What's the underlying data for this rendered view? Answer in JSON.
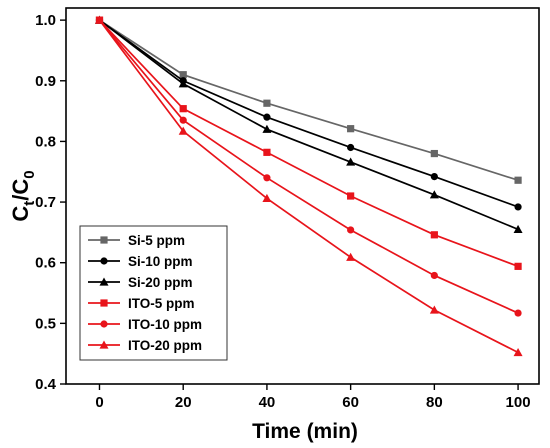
{
  "chart_data": {
    "type": "line",
    "xlabel": "Time (min)",
    "ylabel_main": "C",
    "ylabel_sub1": "t",
    "ylabel_sep": "/C",
    "ylabel_sub2": "0",
    "xlim": [
      -8,
      105
    ],
    "ylim": [
      0.4,
      1.02
    ],
    "xticks": [
      "0",
      "20",
      "40",
      "60",
      "80",
      "100"
    ],
    "yticks": [
      "0.4",
      "0.5",
      "0.6",
      "0.7",
      "0.8",
      "0.9",
      "1.0"
    ],
    "x": [
      0,
      20,
      40,
      60,
      80,
      100
    ],
    "legend_position": "bottom-left",
    "series": [
      {
        "name": "Si-5 ppm",
        "marker": "square",
        "color": "#666666",
        "values": [
          1.0,
          0.91,
          0.863,
          0.821,
          0.78,
          0.736
        ]
      },
      {
        "name": "Si-10 ppm",
        "marker": "circle",
        "color": "#000000",
        "values": [
          1.0,
          0.9,
          0.84,
          0.79,
          0.742,
          0.692
        ]
      },
      {
        "name": "Si-20 ppm",
        "marker": "triangle",
        "color": "#000000",
        "values": [
          1.0,
          0.895,
          0.82,
          0.766,
          0.712,
          0.655
        ]
      },
      {
        "name": "ITO-5 ppm",
        "marker": "square",
        "color": "#e8141b",
        "values": [
          1.0,
          0.854,
          0.782,
          0.71,
          0.646,
          0.594
        ]
      },
      {
        "name": "ITO-10 ppm",
        "marker": "circle",
        "color": "#e8141b",
        "values": [
          1.0,
          0.835,
          0.74,
          0.654,
          0.579,
          0.517
        ]
      },
      {
        "name": "ITO-20 ppm",
        "marker": "triangle",
        "color": "#e8141b",
        "values": [
          1.0,
          0.817,
          0.706,
          0.609,
          0.522,
          0.452
        ]
      }
    ]
  }
}
